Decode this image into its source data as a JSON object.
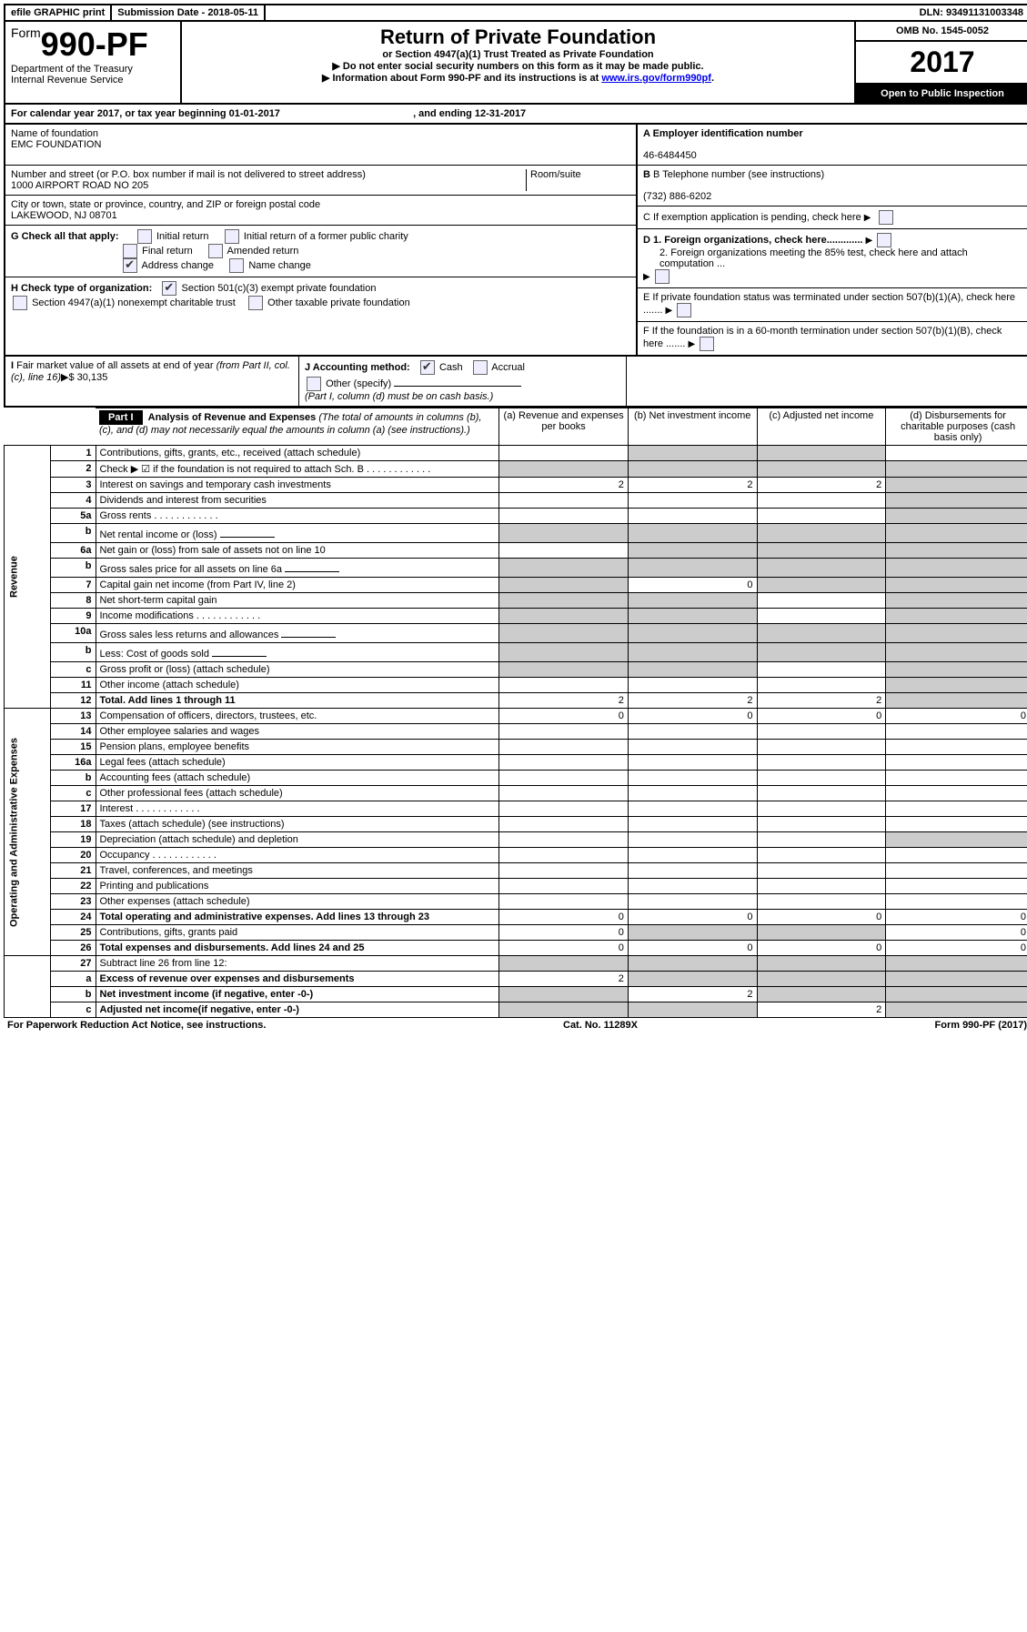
{
  "topbar": {
    "efile": "efile GRAPHIC print",
    "submission_label": "Submission Date - 2018-05-11",
    "dln": "DLN: 93491131003348"
  },
  "header": {
    "form_prefix": "Form",
    "form_number": "990-PF",
    "dept": "Department of the Treasury",
    "irs": "Internal Revenue Service",
    "title": "Return of Private Foundation",
    "subtitle": "or Section 4947(a)(1) Trust Treated as Private Foundation",
    "warn1": "▶ Do not enter social security numbers on this form as it may be made public.",
    "warn2_pre": "▶ Information about Form 990-PF and its instructions is at ",
    "warn2_link": "www.irs.gov/form990pf",
    "omb": "OMB No. 1545-0052",
    "year": "2017",
    "open": "Open to Public Inspection"
  },
  "calendar": {
    "line_pre": "For calendar year 2017, or tax year beginning ",
    "begin": "01-01-2017",
    "mid": " , and ending ",
    "end": "12-31-2017"
  },
  "info": {
    "name_label": "Name of foundation",
    "name": "EMC FOUNDATION",
    "addr_label": "Number and street (or P.O. box number if mail is not delivered to street address)",
    "room_label": "Room/suite",
    "addr": "1000 AIRPORT ROAD NO 205",
    "city_label": "City or town, state or province, country, and ZIP or foreign postal code",
    "city": "LAKEWOOD, NJ  08701",
    "ein_label": "A Employer identification number",
    "ein": "46-6484450",
    "tel_label": "B Telephone number (see instructions)",
    "tel": "(732) 886-6202",
    "c": "C If exemption application is pending, check here",
    "g_label": "G Check all that apply:",
    "g_opts": [
      "Initial return",
      "Initial return of a former public charity",
      "Final return",
      "Amended return",
      "Address change",
      "Name change"
    ],
    "h_label": "H Check type of organization:",
    "h_1": "Section 501(c)(3) exempt private foundation",
    "h_2": "Section 4947(a)(1) nonexempt charitable trust",
    "h_3": "Other taxable private foundation",
    "d1": "D 1. Foreign organizations, check here.............",
    "d2": "2. Foreign organizations meeting the 85% test, check here and attach computation ...",
    "e": "E  If private foundation status was terminated under section 507(b)(1)(A), check here .......",
    "f": "F  If the foundation is in a 60-month termination under section 507(b)(1)(B), check here .......",
    "i_label": "I Fair market value of all assets at end of year (from Part II, col. (c), line 16)▶$ ",
    "i_val": "30,135",
    "j_label": "J Accounting method:",
    "j_cash": "Cash",
    "j_accrual": "Accrual",
    "j_other": "Other (specify)",
    "j_note": "(Part I, column (d) must be on cash basis.)"
  },
  "part1": {
    "label": "Part I",
    "title": "Analysis of Revenue and Expenses",
    "title_note": " (The total of amounts in columns (b), (c), and (d) may not necessarily equal the amounts in column (a) (see instructions).)",
    "col_a": "(a)   Revenue and expenses per books",
    "col_b": "(b)  Net investment income",
    "col_c": "(c)  Adjusted net income",
    "col_d": "(d)  Disbursements for charitable purposes (cash basis only)",
    "side_rev": "Revenue",
    "side_exp": "Operating and Administrative Expenses",
    "rows": [
      {
        "n": "1",
        "t": "Contributions, gifts, grants, etc., received (attach schedule)",
        "a": "",
        "b": "s",
        "c": "s",
        "d": ""
      },
      {
        "n": "2",
        "t": "Check ▶ ☑ if the foundation is not required to attach Sch. B",
        "a": "s",
        "b": "s",
        "c": "s",
        "d": "s",
        "dots": true
      },
      {
        "n": "3",
        "t": "Interest on savings and temporary cash investments",
        "a": "2",
        "b": "2",
        "c": "2",
        "d": "s"
      },
      {
        "n": "4",
        "t": "Dividends and interest from securities",
        "a": "",
        "b": "",
        "c": "",
        "d": "s"
      },
      {
        "n": "5a",
        "t": "Gross rents",
        "a": "",
        "b": "",
        "c": "",
        "d": "s",
        "dots": true
      },
      {
        "n": "b",
        "t": "Net rental income or (loss)",
        "a": "s",
        "b": "s",
        "c": "s",
        "d": "s",
        "inset": true
      },
      {
        "n": "6a",
        "t": "Net gain or (loss) from sale of assets not on line 10",
        "a": "",
        "b": "s",
        "c": "s",
        "d": "s"
      },
      {
        "n": "b",
        "t": "Gross sales price for all assets on line 6a",
        "a": "s",
        "b": "s",
        "c": "s",
        "d": "s",
        "inset": true
      },
      {
        "n": "7",
        "t": "Capital gain net income (from Part IV, line 2)",
        "a": "s",
        "b": "0",
        "c": "s",
        "d": "s"
      },
      {
        "n": "8",
        "t": "Net short-term capital gain",
        "a": "s",
        "b": "s",
        "c": "",
        "d": "s"
      },
      {
        "n": "9",
        "t": "Income modifications",
        "a": "s",
        "b": "s",
        "c": "",
        "d": "s",
        "dots": true
      },
      {
        "n": "10a",
        "t": "Gross sales less returns and allowances",
        "a": "s",
        "b": "s",
        "c": "s",
        "d": "s",
        "inset": true
      },
      {
        "n": "b",
        "t": "Less: Cost of goods sold",
        "a": "s",
        "b": "s",
        "c": "s",
        "d": "s",
        "inset": true
      },
      {
        "n": "c",
        "t": "Gross profit or (loss) (attach schedule)",
        "a": "s",
        "b": "s",
        "c": "",
        "d": "s"
      },
      {
        "n": "11",
        "t": "Other income (attach schedule)",
        "a": "",
        "b": "",
        "c": "",
        "d": "s"
      },
      {
        "n": "12",
        "t": "Total. Add lines 1 through 11",
        "a": "2",
        "b": "2",
        "c": "2",
        "d": "s",
        "bold": true
      }
    ],
    "exp_rows": [
      {
        "n": "13",
        "t": "Compensation of officers, directors, trustees, etc.",
        "a": "0",
        "b": "0",
        "c": "0",
        "d": "0"
      },
      {
        "n": "14",
        "t": "Other employee salaries and wages",
        "a": "",
        "b": "",
        "c": "",
        "d": ""
      },
      {
        "n": "15",
        "t": "Pension plans, employee benefits",
        "a": "",
        "b": "",
        "c": "",
        "d": ""
      },
      {
        "n": "16a",
        "t": "Legal fees (attach schedule)",
        "a": "",
        "b": "",
        "c": "",
        "d": ""
      },
      {
        "n": "b",
        "t": "Accounting fees (attach schedule)",
        "a": "",
        "b": "",
        "c": "",
        "d": ""
      },
      {
        "n": "c",
        "t": "Other professional fees (attach schedule)",
        "a": "",
        "b": "",
        "c": "",
        "d": ""
      },
      {
        "n": "17",
        "t": "Interest",
        "a": "",
        "b": "",
        "c": "",
        "d": "",
        "dots": true
      },
      {
        "n": "18",
        "t": "Taxes (attach schedule) (see instructions)",
        "a": "",
        "b": "",
        "c": "",
        "d": ""
      },
      {
        "n": "19",
        "t": "Depreciation (attach schedule) and depletion",
        "a": "",
        "b": "",
        "c": "",
        "d": "s"
      },
      {
        "n": "20",
        "t": "Occupancy",
        "a": "",
        "b": "",
        "c": "",
        "d": "",
        "dots": true
      },
      {
        "n": "21",
        "t": "Travel, conferences, and meetings",
        "a": "",
        "b": "",
        "c": "",
        "d": ""
      },
      {
        "n": "22",
        "t": "Printing and publications",
        "a": "",
        "b": "",
        "c": "",
        "d": ""
      },
      {
        "n": "23",
        "t": "Other expenses (attach schedule)",
        "a": "",
        "b": "",
        "c": "",
        "d": ""
      },
      {
        "n": "24",
        "t": "Total operating and administrative expenses. Add lines 13 through 23",
        "a": "0",
        "b": "0",
        "c": "0",
        "d": "0",
        "bold": true
      },
      {
        "n": "25",
        "t": "Contributions, gifts, grants paid",
        "a": "0",
        "b": "s",
        "c": "s",
        "d": "0"
      },
      {
        "n": "26",
        "t": "Total expenses and disbursements. Add lines 24 and 25",
        "a": "0",
        "b": "0",
        "c": "0",
        "d": "0",
        "bold": true
      }
    ],
    "final_rows": [
      {
        "n": "27",
        "t": "Subtract line 26 from line 12:",
        "a": "s",
        "b": "s",
        "c": "s",
        "d": "s"
      },
      {
        "n": "a",
        "t": "Excess of revenue over expenses and disbursements",
        "a": "2",
        "b": "s",
        "c": "s",
        "d": "s",
        "bold": true
      },
      {
        "n": "b",
        "t": "Net investment income (if negative, enter -0-)",
        "a": "s",
        "b": "2",
        "c": "s",
        "d": "s",
        "bold": true
      },
      {
        "n": "c",
        "t": "Adjusted net income(if negative, enter -0-)",
        "a": "s",
        "b": "s",
        "c": "2",
        "d": "s",
        "bold": true
      }
    ]
  },
  "footer": {
    "left": "For Paperwork Reduction Act Notice, see instructions.",
    "mid": "Cat. No. 11289X",
    "right": "Form 990-PF (2017)"
  }
}
